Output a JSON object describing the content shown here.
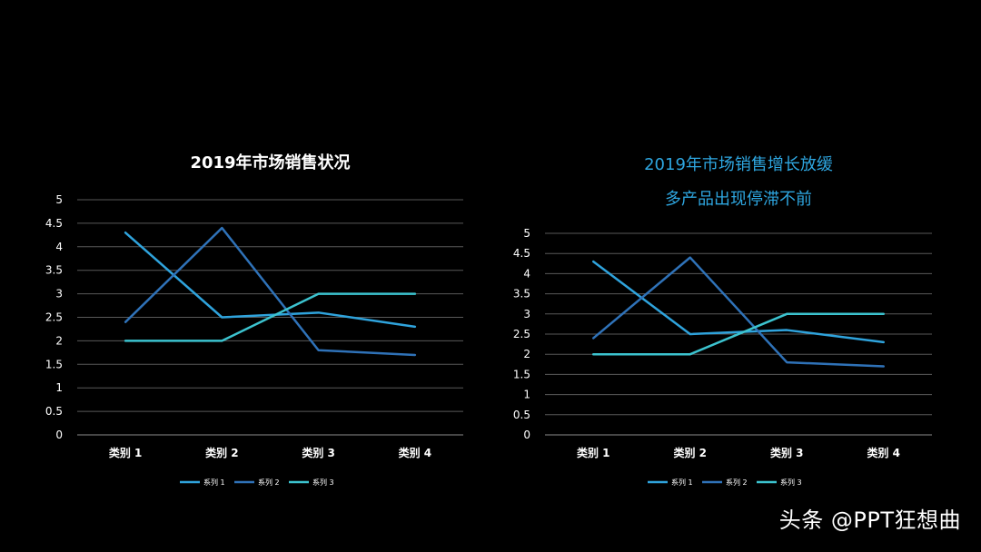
{
  "watermark": "头条 @PPT狂想曲",
  "colors": {
    "background": "#000000",
    "gridline": "#595959",
    "axis_text": "#ffffff",
    "title_left": "#ffffff",
    "title_right": "#2ea6e0",
    "series": [
      "#2fa3dc",
      "#2f72b8",
      "#3cc3cf"
    ]
  },
  "chart_data": [
    {
      "type": "line",
      "title": "2019年市场销售状况",
      "subtitle": "",
      "xlabel": "",
      "ylabel": "",
      "categories": [
        "类别 1",
        "类别 2",
        "类别 3",
        "类别 4"
      ],
      "yticks": [
        "0",
        "0.5",
        "1",
        "1.5",
        "2",
        "2.5",
        "3",
        "3.5",
        "4",
        "4.5",
        "5"
      ],
      "ylim": [
        0,
        5
      ],
      "grid": true,
      "legend": "bottom",
      "series": [
        {
          "name": "系列 1",
          "values": [
            4.3,
            2.5,
            2.6,
            2.3
          ]
        },
        {
          "name": "系列 2",
          "values": [
            2.4,
            4.4,
            1.8,
            1.7
          ]
        },
        {
          "name": "系列 3",
          "values": [
            2.0,
            2.0,
            3.0,
            3.0
          ]
        }
      ]
    },
    {
      "type": "line",
      "title": "2019年市场销售增长放缓",
      "subtitle": "多产品出现停滞不前",
      "xlabel": "",
      "ylabel": "",
      "categories": [
        "类别 1",
        "类别 2",
        "类别 3",
        "类别 4"
      ],
      "yticks": [
        "0",
        "0.5",
        "1",
        "1.5",
        "2",
        "2.5",
        "3",
        "3.5",
        "4",
        "4.5",
        "5"
      ],
      "ylim": [
        0,
        5
      ],
      "grid": true,
      "legend": "bottom",
      "series": [
        {
          "name": "系列 1",
          "values": [
            4.3,
            2.5,
            2.6,
            2.3
          ]
        },
        {
          "name": "系列 2",
          "values": [
            2.4,
            4.4,
            1.8,
            1.7
          ]
        },
        {
          "name": "系列 3",
          "values": [
            2.0,
            2.0,
            3.0,
            3.0
          ]
        }
      ]
    }
  ]
}
